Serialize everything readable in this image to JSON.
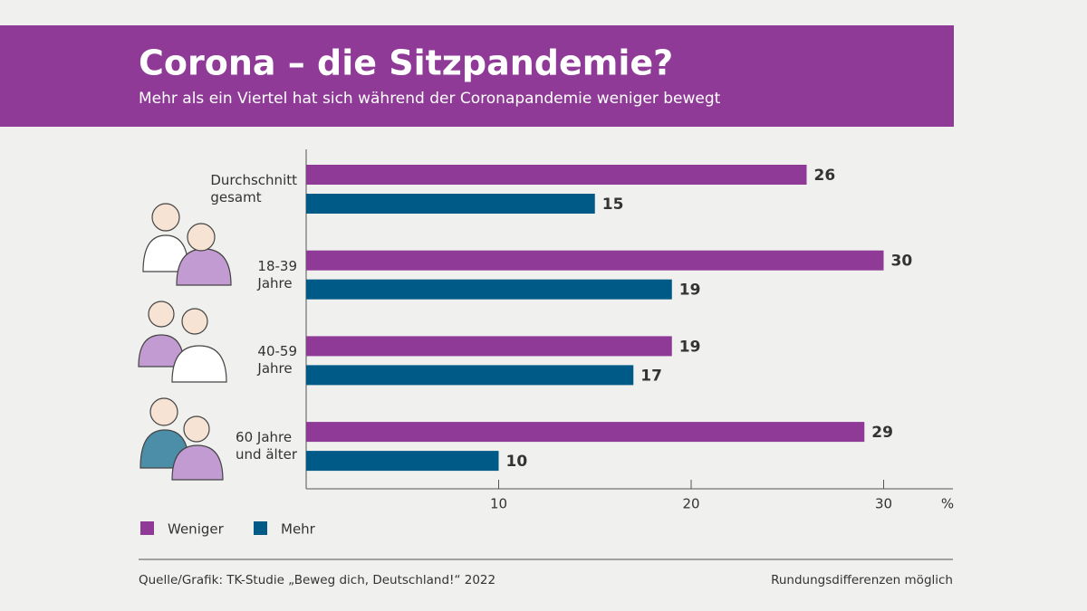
{
  "chart_data": {
    "type": "hbar",
    "title": "Corona – die Sitzpandemie?",
    "subtitle": "Mehr als ein Viertel hat sich während der Coronapandemie weniger bewegt",
    "categories": [
      "Durchschnitt\ngesamt",
      "18-39\nJahre",
      "40-59\nJahre",
      "60 Jahre\nund älter"
    ],
    "series": [
      {
        "name": "Weniger",
        "color": "#8e3a96",
        "values": [
          26,
          30,
          19,
          29
        ]
      },
      {
        "name": "Mehr",
        "color": "#005a87",
        "values": [
          15,
          19,
          17,
          10
        ]
      }
    ],
    "xlabel": "%",
    "xlim": [
      0,
      33.6
    ],
    "xticks": [
      10,
      20,
      30
    ],
    "source": "Quelle/Grafik: TK-Studie „Beweg dich, Deutschland!“ 2022",
    "note": "Rundungsdifferenzen möglich"
  }
}
